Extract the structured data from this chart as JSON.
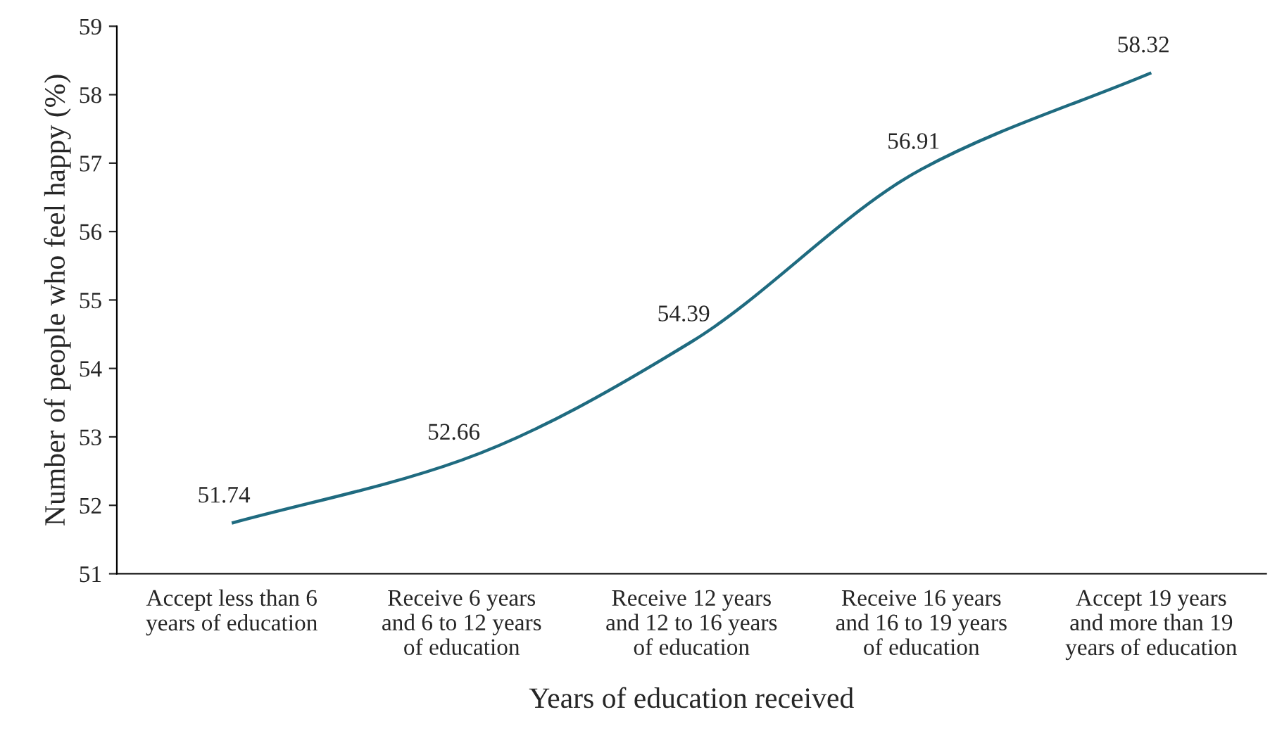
{
  "chart_data": {
    "type": "line",
    "xlabel": "Years of education received",
    "ylabel": "Number of people who feel happy (%)",
    "categories": [
      "Accept less than 6\nyears of education",
      "Receive 6 years\nand 6 to 12 years\nof education",
      "Receive 12 years\nand 12 to 16 years\nof education",
      "Receive 16 years\nand 16 to 19 years\nof education",
      "Accept 19 years\nand more than 19\nyears of education"
    ],
    "series": [
      {
        "color": "#1f6b80",
        "values": [
          51.74,
          52.66,
          54.39,
          56.91,
          58.32
        ]
      }
    ],
    "ylim": [
      51,
      59
    ],
    "yticks": [
      51,
      52,
      53,
      54,
      55,
      56,
      57,
      58,
      59
    ],
    "data_labels": true,
    "grid": false,
    "marker": "none",
    "line_style": "solid"
  }
}
